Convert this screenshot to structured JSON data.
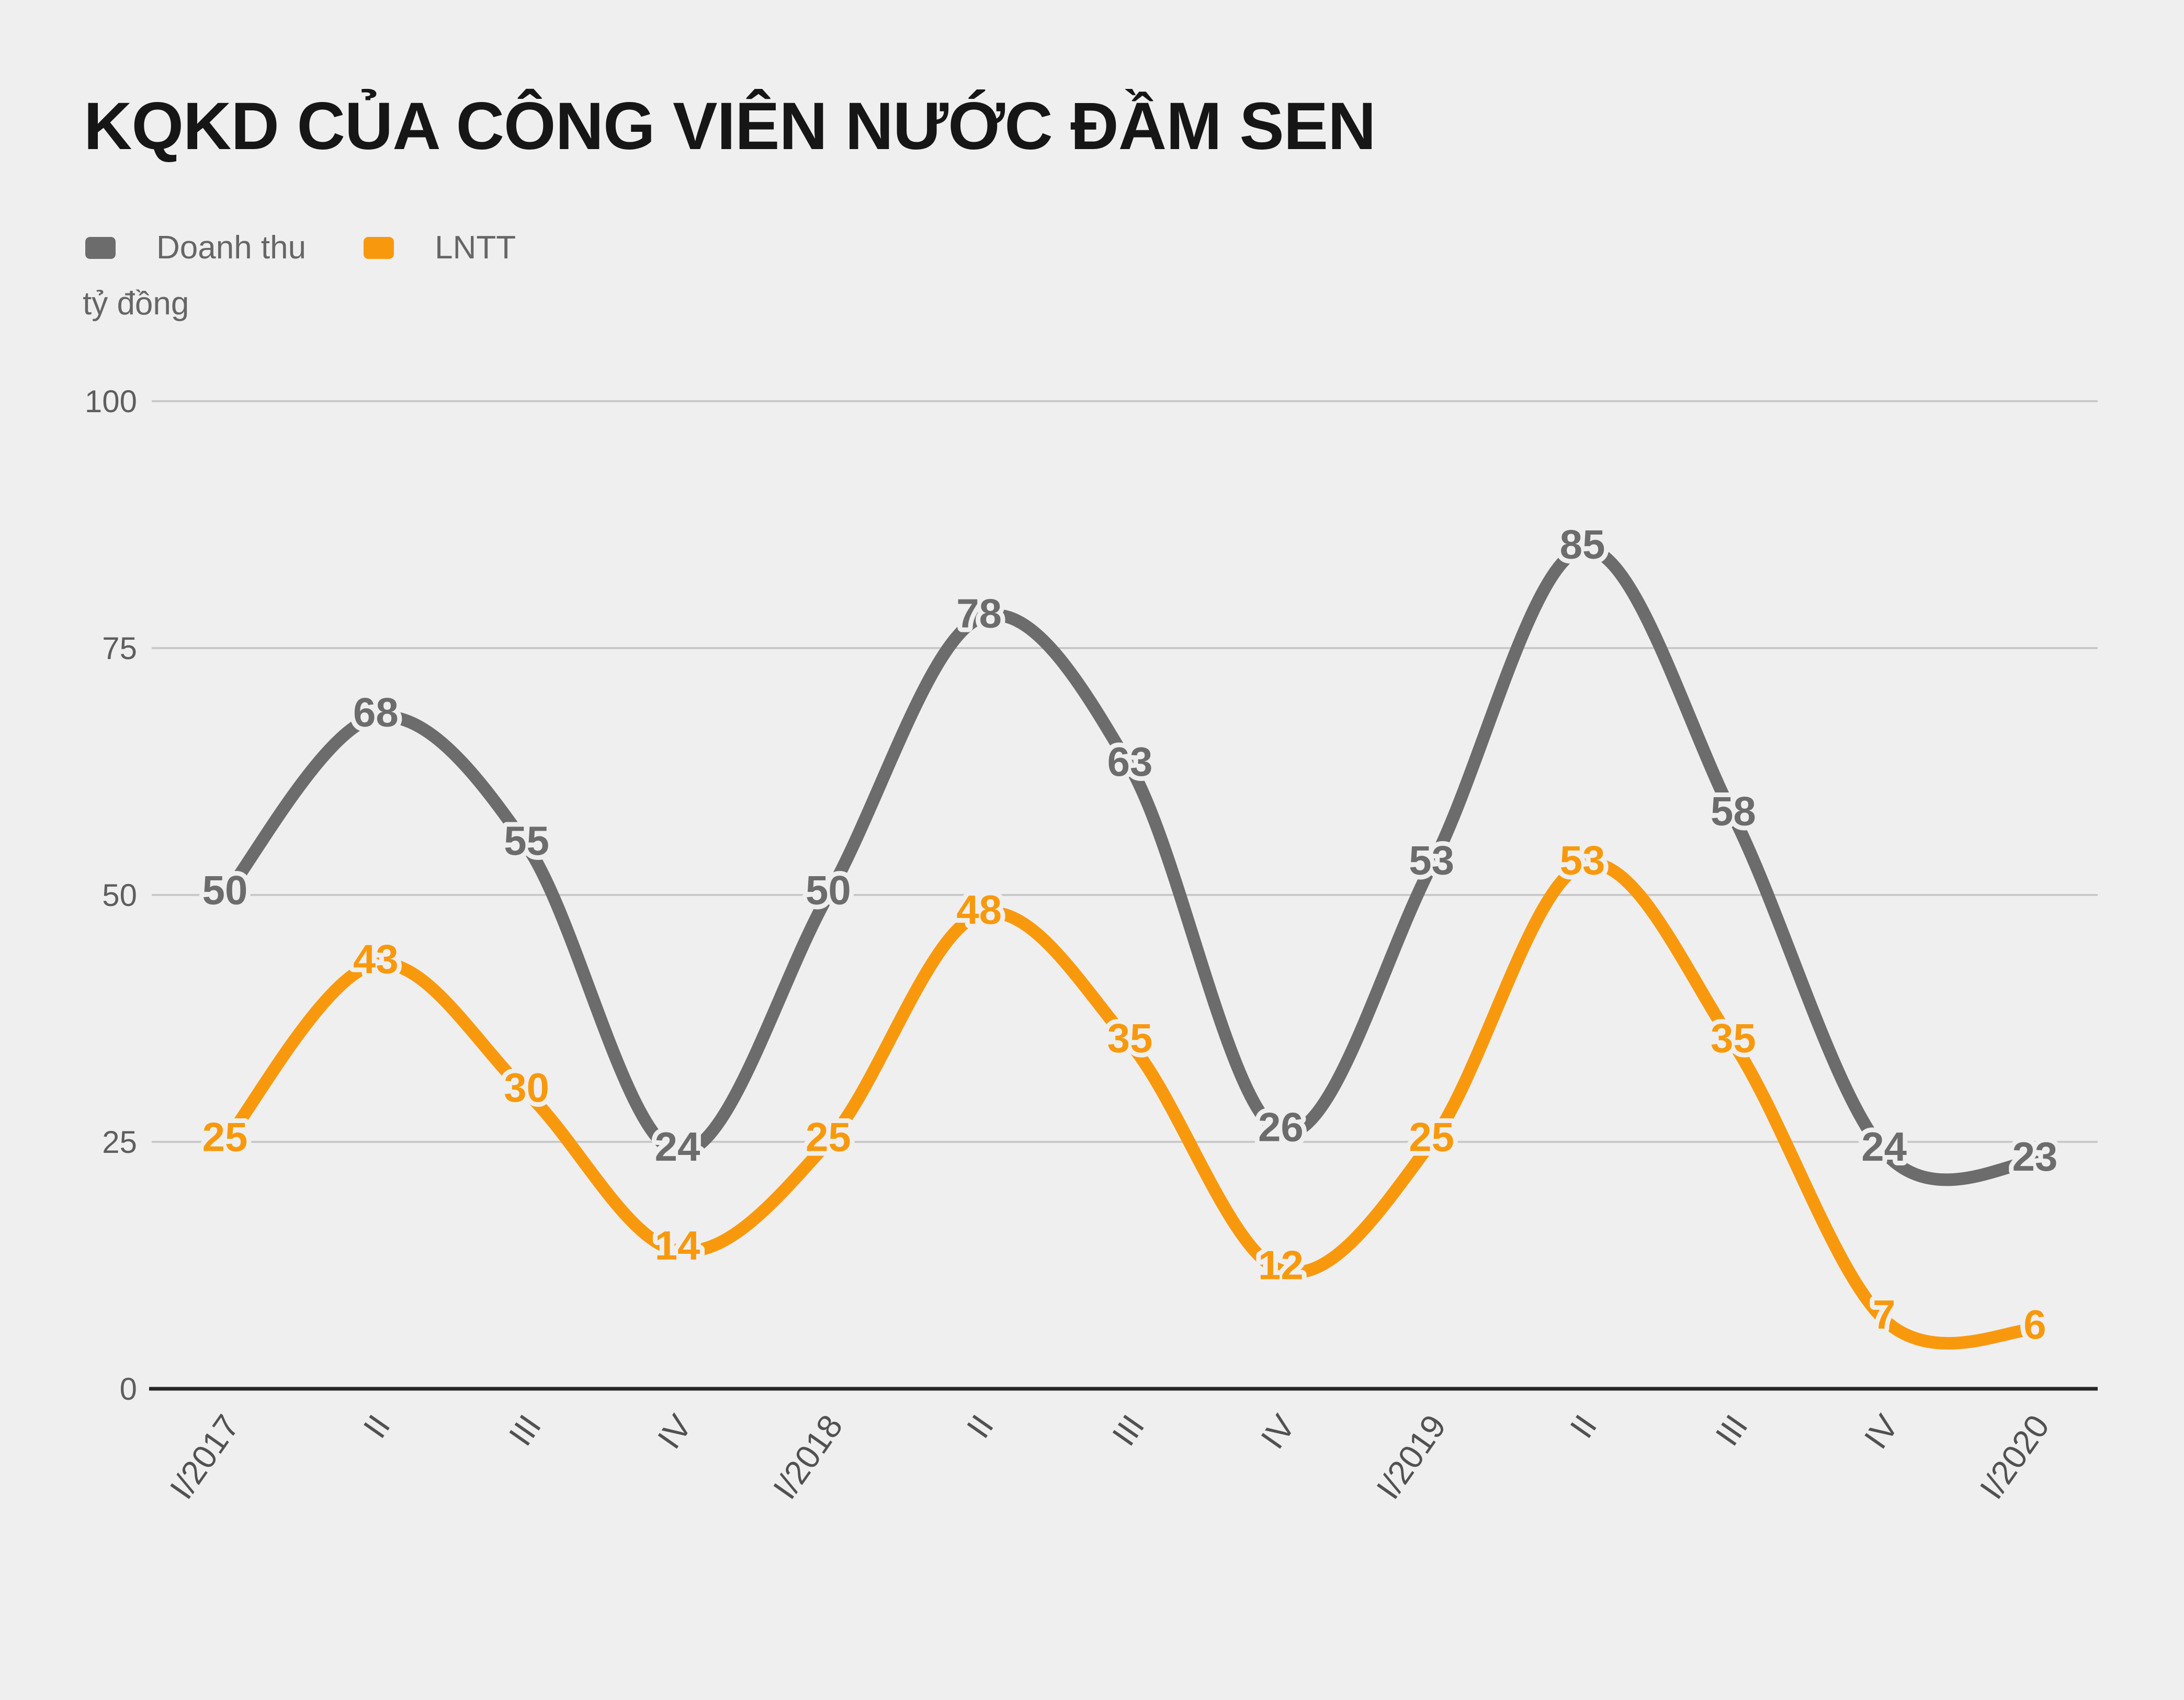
{
  "chart_data": {
    "type": "line",
    "title": "KQKD CỦA CÔNG VIÊN NƯỚC ĐẦM SEN",
    "unit_label": "tỷ đồng",
    "categories": [
      "I/2017",
      "II",
      "III",
      "IV",
      "I/2018",
      "II",
      "III",
      "IV",
      "I/2019",
      "II",
      "III",
      "IV",
      "I/2020"
    ],
    "series": [
      {
        "name": "Doanh thu",
        "color": "#6c6c6c",
        "values": [
          50,
          68,
          55,
          24,
          50,
          78,
          63,
          26,
          53,
          85,
          58,
          24,
          23
        ]
      },
      {
        "name": "LNTT",
        "color": "#f8990d",
        "values": [
          25,
          43,
          30,
          14,
          25,
          48,
          35,
          12,
          25,
          53,
          35,
          7,
          6
        ]
      }
    ],
    "yticks": [
      0,
      25,
      50,
      75,
      100
    ],
    "ylim": [
      0,
      100
    ],
    "grid": true,
    "legend_position": "top-left",
    "colors": {
      "background": "#efefef",
      "grid_line": "#c9c9c9",
      "axis_line": "#262626",
      "tick_label": "#5e5e5e",
      "title": "#161616",
      "legend_text": "#666666",
      "label_halo": "#efefef"
    }
  }
}
